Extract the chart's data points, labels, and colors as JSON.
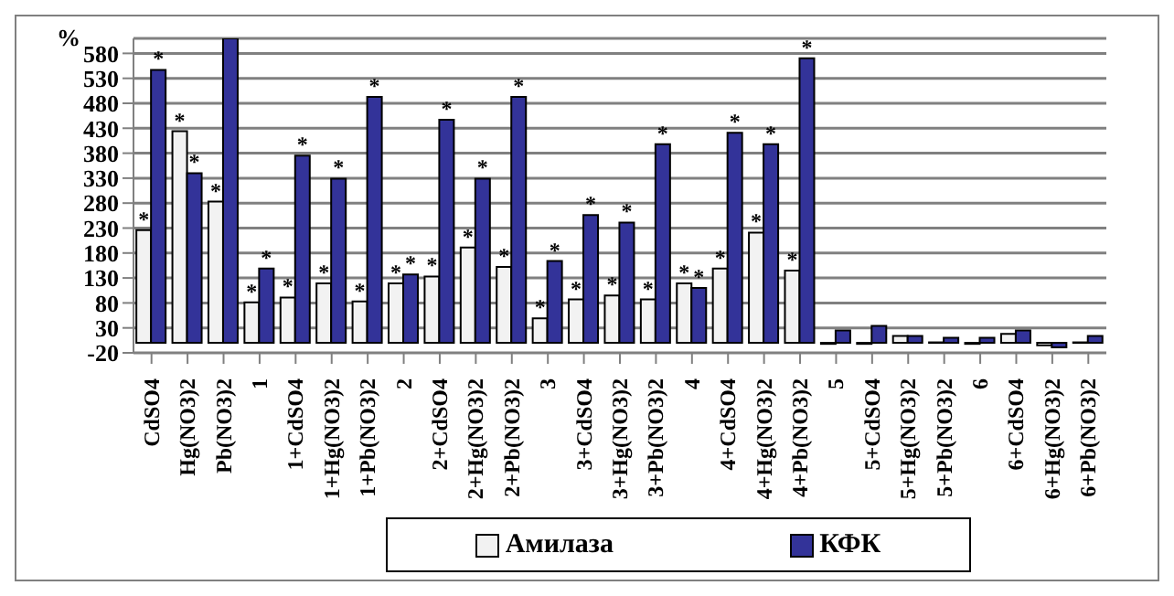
{
  "chart_data": {
    "type": "bar",
    "ylabel": "%",
    "categories": [
      "CdSO4",
      "Hg(NO3)2",
      "Pb(NO3)2",
      "1",
      "1+CdSO4",
      "1+Hg(NO3)2",
      "1+Pb(NO3)2",
      "2",
      "2+CdSO4",
      "2+Hg(NO3)2",
      "2+Pb(NO3)2",
      "3",
      "3+CdSO4",
      "3+Hg(NO3)2",
      "3+Pb(NO3)2",
      "4",
      "4+CdSO4",
      "4+Hg(NO3)2",
      "4+Pb(NO3)2",
      "5",
      "5+CdSO4",
      "5+Hg(NO3)2",
      "5+Pb(NO3)2",
      "6",
      "6+CdSO4",
      "6+Hg(NO3)2",
      "6+Pb(NO3)2"
    ],
    "series": [
      {
        "name": "Амилаза",
        "color": "#f2f2f2",
        "values": [
          226,
          424,
          283,
          81,
          91,
          119,
          83,
          119,
          133,
          191,
          152,
          49,
          87,
          95,
          87,
          119,
          149,
          221,
          145,
          -2,
          -2,
          14,
          1,
          -2,
          18,
          -5,
          1
        ],
        "value_labels": [
          "*",
          "*",
          "*",
          "*",
          "*",
          "*",
          "*",
          "*",
          "*",
          "*",
          "*",
          "*",
          "*",
          "*",
          "*",
          "*",
          "*",
          "*",
          "*",
          null,
          null,
          null,
          null,
          null,
          null,
          null,
          null
        ]
      },
      {
        "name": "КФК",
        "color": "#333399",
        "values": [
          547,
          340,
          610,
          149,
          375,
          329,
          493,
          137,
          447,
          329,
          493,
          164,
          256,
          241,
          398,
          110,
          421,
          398,
          570,
          25,
          34,
          14,
          10,
          10,
          25,
          -9,
          14
        ],
        "value_labels": [
          "*",
          "*",
          null,
          "*",
          "*",
          "*",
          "*",
          "*",
          "*",
          "*",
          "*",
          "*",
          "*",
          "*",
          "*",
          "*",
          "*",
          "*",
          "*",
          null,
          null,
          null,
          null,
          null,
          null,
          null,
          null
        ]
      }
    ],
    "ylim": [
      -20,
      610
    ],
    "yticks": [
      -20,
      30,
      80,
      130,
      180,
      230,
      280,
      330,
      380,
      430,
      480,
      530,
      580
    ],
    "grid": "y",
    "legend": "bottom"
  }
}
